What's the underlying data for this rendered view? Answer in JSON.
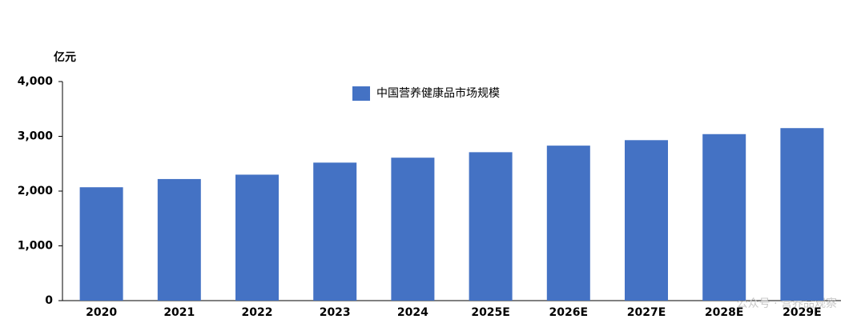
{
  "chart_data": {
    "type": "bar",
    "y_axis_label": "亿元",
    "categories": [
      "2020",
      "2021",
      "2022",
      "2023",
      "2024",
      "2025E",
      "2026E",
      "2027E",
      "2028E",
      "2029E"
    ],
    "series": [
      {
        "name": "中国营养健康品市场规模",
        "color": "#4472c4",
        "values": [
          2070,
          2220,
          2300,
          2520,
          2610,
          2710,
          2830,
          2930,
          3040,
          3150
        ]
      }
    ],
    "ylim": [
      0,
      4000
    ],
    "yticks": [
      0,
      {
        "value": 1000,
        "label": "1,000"
      },
      {
        "value": 2000,
        "label": "2,000"
      },
      {
        "value": 3000,
        "label": "3,000"
      },
      {
        "value": 4000,
        "label": "4,000"
      }
    ],
    "grid": false,
    "legend": "top",
    "watermark": "公众号 · 营养品观察"
  }
}
